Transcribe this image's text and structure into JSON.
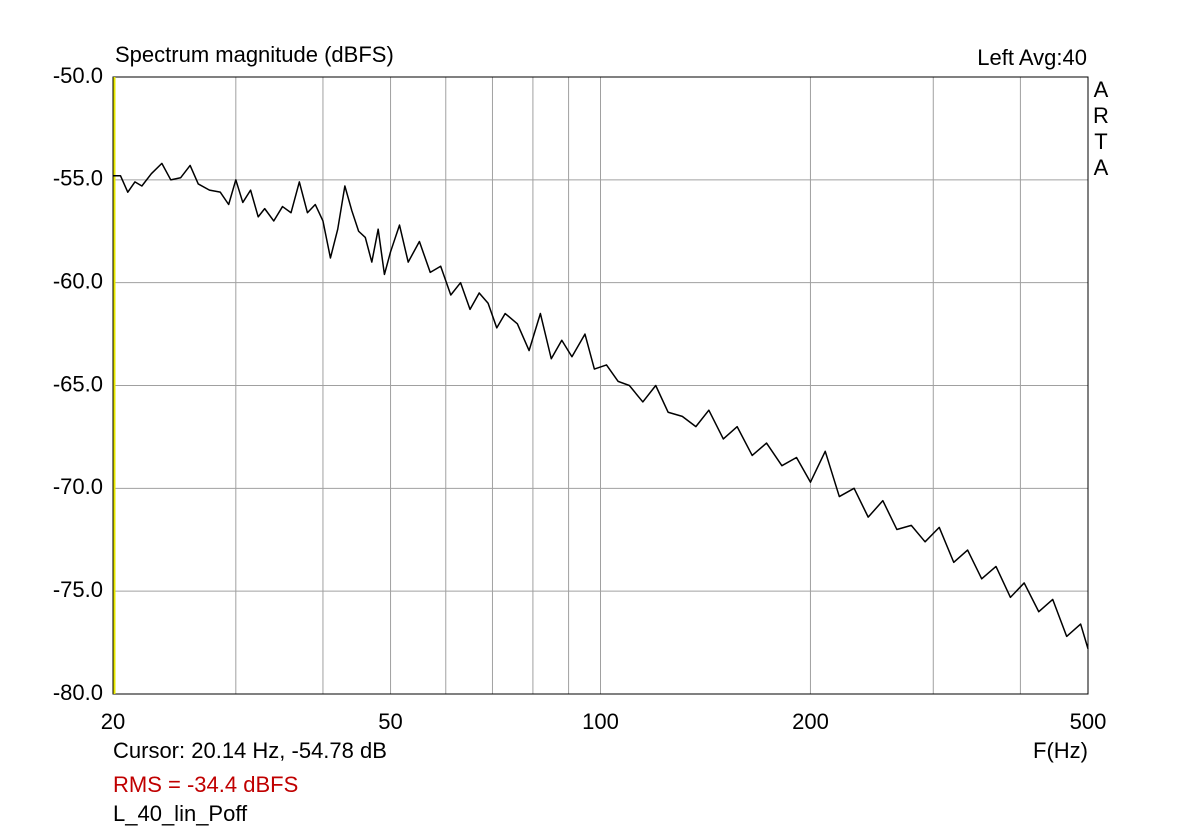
{
  "chart_data": {
    "type": "line",
    "title": "Spectrum magnitude (dBFS)",
    "channel_label": "Left  Avg:40",
    "brand": "ARTA",
    "x_label": "F(Hz)",
    "cursor_text": "Cursor: 20.14 Hz, -54.78 dB",
    "rms_text": "RMS =  -34.4 dBFS",
    "rms_color": "#c00000",
    "file_label": "L_40_lin_Poff",
    "xlog": true,
    "grid": true,
    "xlim": [
      20,
      500
    ],
    "xticks": [
      20,
      50,
      100,
      200,
      500
    ],
    "xminor": [
      30,
      40,
      60,
      70,
      80,
      90,
      300,
      400
    ],
    "ylim": [
      -80,
      -50
    ],
    "yticks": [
      {
        "value": -80,
        "label": "-80.0"
      },
      {
        "value": -75,
        "label": "-75.0"
      },
      {
        "value": -70,
        "label": "-70.0"
      },
      {
        "value": -65,
        "label": "-65.0"
      },
      {
        "value": -60,
        "label": "-60.0"
      },
      {
        "value": -55,
        "label": "-55.0"
      },
      {
        "value": -50,
        "label": "-50.0"
      }
    ],
    "series": [
      {
        "color": "#000000",
        "x": [
          20,
          20.5,
          21,
          21.5,
          22,
          22.7,
          23.5,
          24.2,
          25,
          25.8,
          26.5,
          27.5,
          28.5,
          29.3,
          30,
          30.7,
          31.5,
          32.3,
          33,
          34,
          35,
          36,
          37,
          38,
          39,
          40,
          41,
          42,
          43,
          44,
          45,
          46,
          47,
          48,
          49,
          50,
          51.5,
          53,
          55,
          57,
          59,
          61,
          63,
          65,
          67,
          69,
          71,
          73,
          76,
          79,
          82,
          85,
          88,
          91,
          95,
          98,
          102,
          106,
          110,
          115,
          120,
          125,
          131,
          137,
          143,
          150,
          157,
          165,
          173,
          182,
          191,
          200,
          210,
          220,
          231,
          242,
          254,
          266,
          279,
          292,
          306,
          321,
          336,
          352,
          369,
          387,
          405,
          425,
          445,
          466,
          488,
          500
        ],
        "values": [
          -54.8,
          -54.8,
          -55.6,
          -55.1,
          -55.3,
          -54.7,
          -54.2,
          -55.0,
          -54.9,
          -54.3,
          -55.2,
          -55.5,
          -55.6,
          -56.2,
          -55.0,
          -56.1,
          -55.5,
          -56.8,
          -56.4,
          -57.0,
          -56.3,
          -56.6,
          -55.1,
          -56.6,
          -56.2,
          -57.0,
          -58.8,
          -57.4,
          -55.3,
          -56.5,
          -57.5,
          -57.8,
          -59.0,
          -57.4,
          -59.6,
          -58.5,
          -57.2,
          -59.0,
          -58.0,
          -59.5,
          -59.2,
          -60.6,
          -60.0,
          -61.3,
          -60.5,
          -61.0,
          -62.2,
          -61.5,
          -62.0,
          -63.3,
          -61.5,
          -63.7,
          -62.8,
          -63.6,
          -62.5,
          -64.2,
          -64.0,
          -64.8,
          -65.0,
          -65.8,
          -65.0,
          -66.3,
          -66.5,
          -67.0,
          -66.2,
          -67.6,
          -67.0,
          -68.4,
          -67.8,
          -68.9,
          -68.5,
          -69.7,
          -68.2,
          -70.4,
          -70.0,
          -71.4,
          -70.6,
          -72.0,
          -71.8,
          -72.6,
          -71.9,
          -73.6,
          -73.0,
          -74.4,
          -73.8,
          -75.3,
          -74.6,
          -76.0,
          -75.4,
          -77.2,
          -76.6,
          -77.8
        ]
      }
    ]
  }
}
